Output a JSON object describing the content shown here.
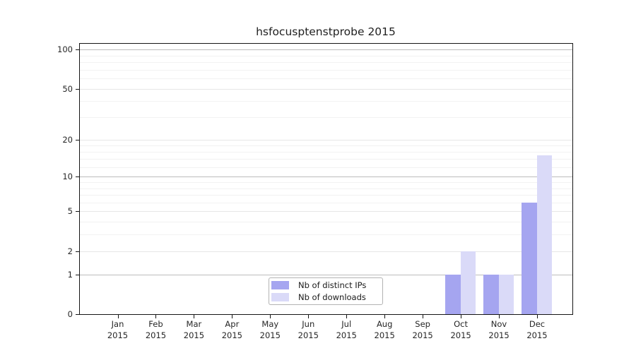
{
  "title": "hsfocusptenstprobe 2015",
  "chart_data": {
    "type": "bar",
    "title": "hsfocusptenstprobe 2015",
    "categories": [
      "Jan 2015",
      "Feb 2015",
      "Mar 2015",
      "Apr 2015",
      "May 2015",
      "Jun 2015",
      "Jul 2015",
      "Aug 2015",
      "Sep 2015",
      "Oct 2015",
      "Nov 2015",
      "Dec 2015"
    ],
    "series": [
      {
        "name": "Nb of distinct IPs",
        "color": "#a5a5f0",
        "values": [
          0,
          0,
          0,
          0,
          0,
          0,
          0,
          0,
          0,
          1,
          1,
          6
        ]
      },
      {
        "name": "Nb of downloads",
        "color": "#dadaf8",
        "values": [
          0,
          0,
          0,
          0,
          0,
          0,
          0,
          0,
          0,
          2,
          1,
          15
        ]
      }
    ],
    "xlabel": "",
    "ylabel": "",
    "y_scale": "log1p",
    "ylim": [
      0,
      112
    ],
    "y_ticks": [
      0,
      1,
      2,
      5,
      10,
      20,
      50,
      100
    ],
    "y_emphasized_gridlines": [
      1,
      10,
      100
    ],
    "y_minor_gridlines": [
      3,
      4,
      6,
      7,
      8,
      9,
      12,
      14,
      16,
      18,
      30,
      40,
      60,
      70,
      80,
      90
    ],
    "grid": true,
    "legend_position": "lower center",
    "colors": {
      "bar_distinct_ips": "#a5a5f0",
      "bar_downloads": "#dadaf8",
      "grid_emphasized": "#bcbcbc",
      "grid_light": "#e7e7e7",
      "grid_minor": "#f2f2f2",
      "axis": "#151515",
      "text": "#262626"
    }
  }
}
